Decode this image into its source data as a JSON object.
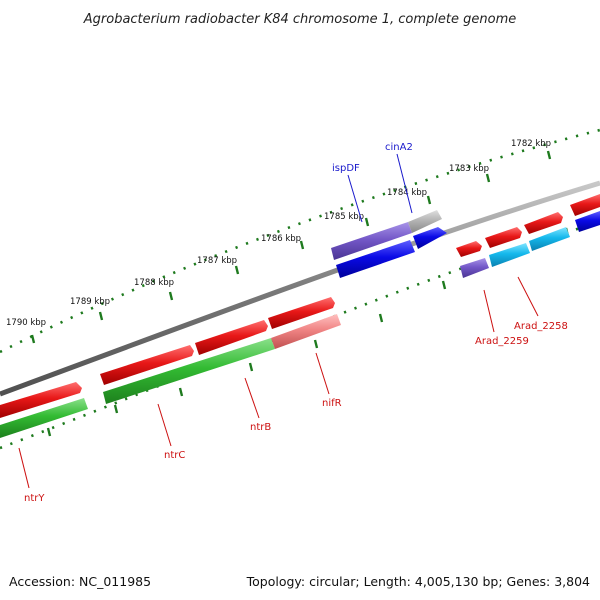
{
  "title": "Agrobacterium radiobacter K84 chromosome 1, complete genome",
  "footer": {
    "accession": "Accession: NC_011985",
    "summary": "Topology: circular; Length: 4,005,130 bp; Genes: 3,804"
  },
  "scale_labels": [
    "1782 kbp",
    "1783 kbp",
    "1784 kbp",
    "1785 kbp",
    "1786 kbp",
    "1787 kbp",
    "1788 kbp",
    "1789 kbp",
    "1790 kbp"
  ],
  "gene_labels": [
    {
      "name": "cinA2",
      "color": "#1a1acc"
    },
    {
      "name": "ispDF",
      "color": "#1a1acc"
    },
    {
      "name": "Arad_2258",
      "color": "#cc1111"
    },
    {
      "name": "Arad_2259",
      "color": "#cc1111"
    },
    {
      "name": "nifR",
      "color": "#cc1111"
    },
    {
      "name": "ntrB",
      "color": "#cc1111"
    },
    {
      "name": "ntrC",
      "color": "#cc1111"
    },
    {
      "name": "ntrY",
      "color": "#cc1111"
    }
  ],
  "colors": {
    "backbone": "#808080",
    "tick_ring": "#1e7a1e",
    "forward_gene": "#e01010",
    "reverse_gene_green": "#2eb82e",
    "reverse_gene_blue": "#0a0ae0",
    "cyan_gene": "#10b8e8",
    "purple_gene": "#7a5ccc",
    "gray_gene": "#b0b0b0",
    "pink_gene": "#f08080"
  }
}
